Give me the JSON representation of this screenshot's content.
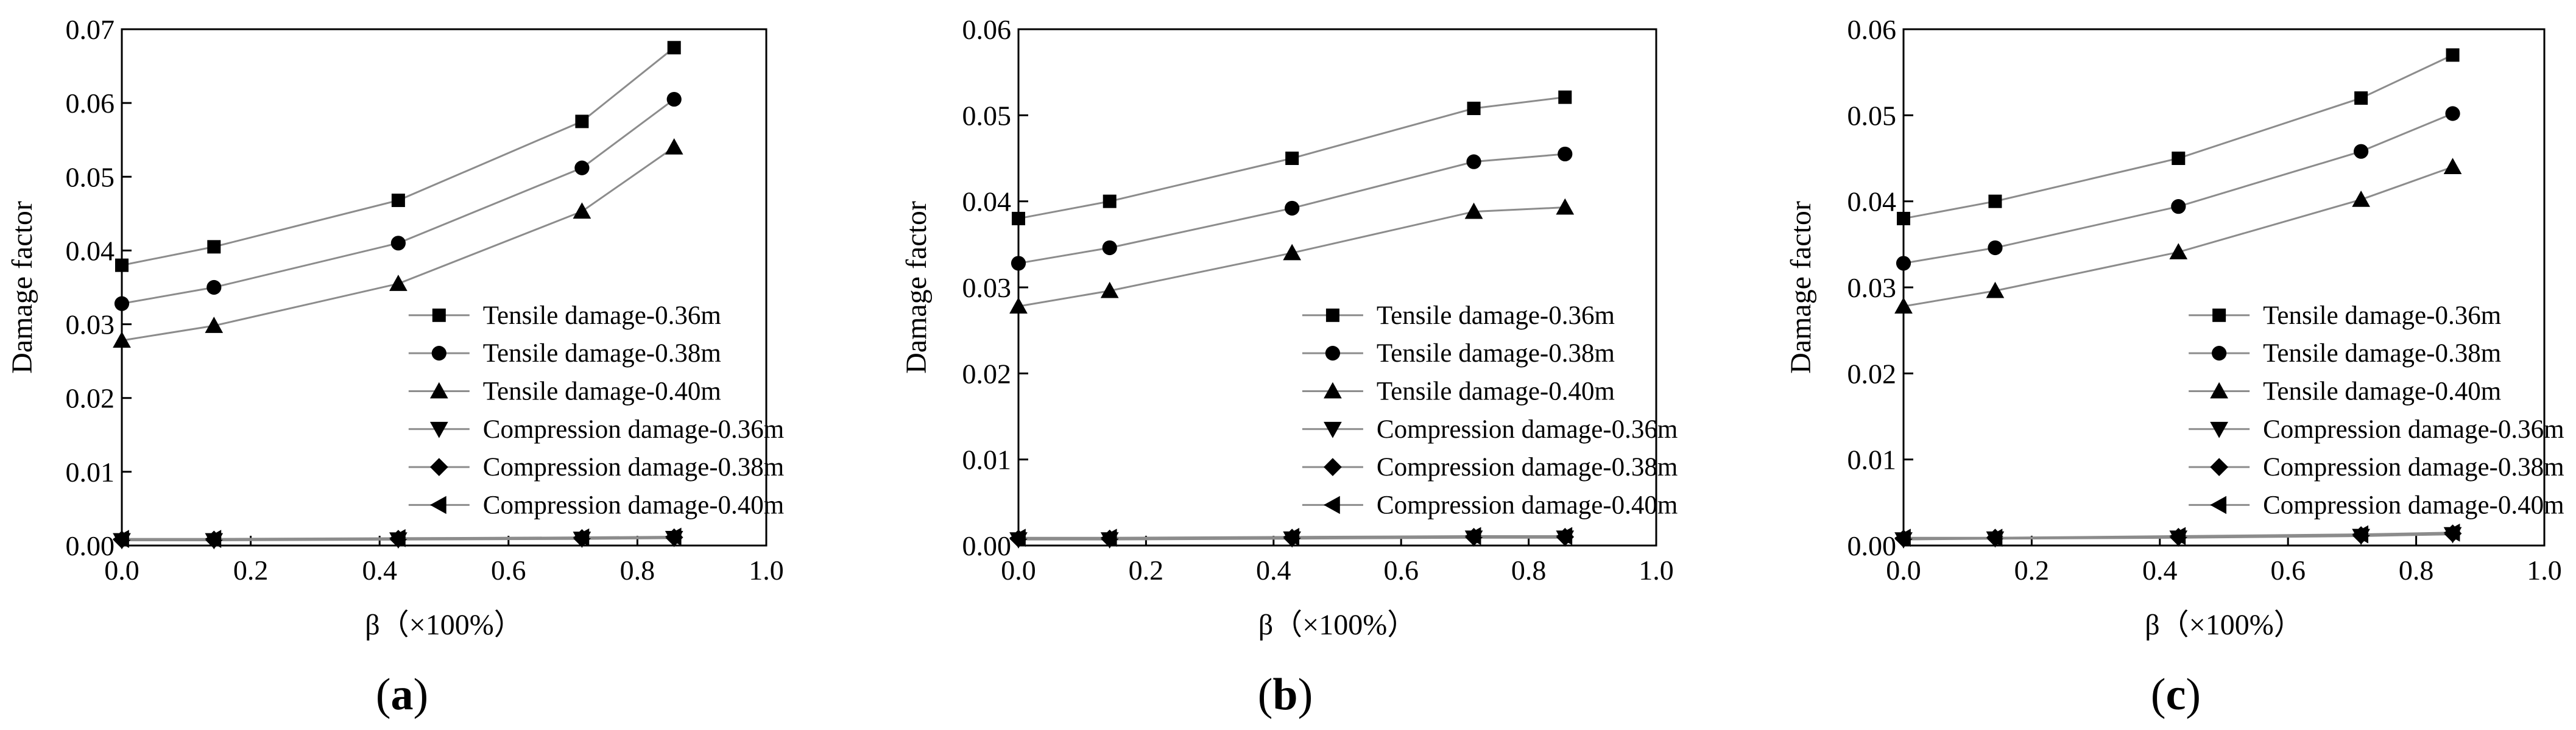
{
  "figure": {
    "panel_labels": [
      {
        "open": "(",
        "letter": "a",
        "close": ")"
      },
      {
        "open": "(",
        "letter": "b",
        "close": ")"
      },
      {
        "open": "(",
        "letter": "c",
        "close": ")"
      }
    ]
  },
  "colors": {
    "axis": "#000000",
    "line": "#8c8c8c",
    "marker": "#000000"
  },
  "chart_data": [
    {
      "type": "line",
      "panel": "a",
      "xlabel": "β（×100%）",
      "ylabel": "Damage factor",
      "xlim": [
        0.0,
        1.0
      ],
      "ylim": [
        0.0,
        0.07
      ],
      "xticks": [
        "0.0",
        "0.2",
        "0.4",
        "0.6",
        "0.8",
        "1.0"
      ],
      "yticks": [
        "0.00",
        "0.01",
        "0.02",
        "0.03",
        "0.04",
        "0.05",
        "0.06",
        "0.07"
      ],
      "legend_position": "bottom-right",
      "x": [
        0.0,
        0.143,
        0.429,
        0.714,
        0.857
      ],
      "series": [
        {
          "name": "Tensile damage-0.36m",
          "marker": "square",
          "values": [
            0.038,
            0.0405,
            0.0468,
            0.0575,
            0.0675
          ]
        },
        {
          "name": "Tensile damage-0.38m",
          "marker": "circle",
          "values": [
            0.0328,
            0.035,
            0.041,
            0.0512,
            0.0605
          ]
        },
        {
          "name": "Tensile damage-0.40m",
          "marker": "triangle-up",
          "values": [
            0.0278,
            0.0298,
            0.0355,
            0.0453,
            0.054
          ]
        },
        {
          "name": "Compression damage-0.36m",
          "marker": "triangle-down",
          "values": [
            0.0007,
            0.0007,
            0.0008,
            0.0009,
            0.001
          ]
        },
        {
          "name": "Compression damage-0.38m",
          "marker": "diamond",
          "values": [
            0.0008,
            0.0008,
            0.0009,
            0.001,
            0.0011
          ]
        },
        {
          "name": "Compression damage-0.40m",
          "marker": "triangle-left",
          "values": [
            0.0009,
            0.0009,
            0.001,
            0.0011,
            0.0012
          ]
        }
      ]
    },
    {
      "type": "line",
      "panel": "b",
      "xlabel": "β（×100%）",
      "ylabel": "Damage factor",
      "xlim": [
        0.0,
        1.0
      ],
      "ylim": [
        0.0,
        0.06
      ],
      "xticks": [
        "0.0",
        "0.2",
        "0.4",
        "0.6",
        "0.8",
        "1.0"
      ],
      "yticks": [
        "0.00",
        "0.01",
        "0.02",
        "0.03",
        "0.04",
        "0.05",
        "0.06"
      ],
      "legend_position": "bottom-right",
      "x": [
        0.0,
        0.143,
        0.429,
        0.714,
        0.857
      ],
      "series": [
        {
          "name": "Tensile damage-0.36m",
          "marker": "square",
          "values": [
            0.038,
            0.04,
            0.045,
            0.0508,
            0.0521
          ]
        },
        {
          "name": "Tensile damage-0.38m",
          "marker": "circle",
          "values": [
            0.0328,
            0.0346,
            0.0392,
            0.0446,
            0.0455
          ]
        },
        {
          "name": "Tensile damage-0.40m",
          "marker": "triangle-up",
          "values": [
            0.0278,
            0.0296,
            0.034,
            0.0388,
            0.0393
          ]
        },
        {
          "name": "Compression damage-0.36m",
          "marker": "triangle-down",
          "values": [
            0.0007,
            0.0007,
            0.0008,
            0.0009,
            0.0009
          ]
        },
        {
          "name": "Compression damage-0.38m",
          "marker": "diamond",
          "values": [
            0.0008,
            0.0008,
            0.0009,
            0.001,
            0.001
          ]
        },
        {
          "name": "Compression damage-0.40m",
          "marker": "triangle-left",
          "values": [
            0.0009,
            0.0009,
            0.001,
            0.0011,
            0.0011
          ]
        }
      ]
    },
    {
      "type": "line",
      "panel": "c",
      "xlabel": "β（×100%）",
      "ylabel": "Damage factor",
      "xlim": [
        0.0,
        1.0
      ],
      "ylim": [
        0.0,
        0.06
      ],
      "xticks": [
        "0.0",
        "0.2",
        "0.4",
        "0.6",
        "0.8",
        "1.0"
      ],
      "yticks": [
        "0.00",
        "0.01",
        "0.02",
        "0.03",
        "0.04",
        "0.05",
        "0.06"
      ],
      "legend_position": "bottom-right",
      "x": [
        0.0,
        0.143,
        0.429,
        0.714,
        0.857
      ],
      "series": [
        {
          "name": "Tensile damage-0.36m",
          "marker": "square",
          "values": [
            0.038,
            0.04,
            0.045,
            0.052,
            0.057
          ]
        },
        {
          "name": "Tensile damage-0.38m",
          "marker": "circle",
          "values": [
            0.0328,
            0.0346,
            0.0394,
            0.0458,
            0.0502
          ]
        },
        {
          "name": "Tensile damage-0.40m",
          "marker": "triangle-up",
          "values": [
            0.0278,
            0.0296,
            0.0341,
            0.0402,
            0.044
          ]
        },
        {
          "name": "Compression damage-0.36m",
          "marker": "triangle-down",
          "values": [
            0.0007,
            0.0008,
            0.0009,
            0.0011,
            0.0013
          ]
        },
        {
          "name": "Compression damage-0.38m",
          "marker": "diamond",
          "values": [
            0.0008,
            0.0009,
            0.001,
            0.0012,
            0.0014
          ]
        },
        {
          "name": "Compression damage-0.40m",
          "marker": "triangle-left",
          "values": [
            0.0009,
            0.0009,
            0.0011,
            0.0013,
            0.0015
          ]
        }
      ]
    }
  ]
}
